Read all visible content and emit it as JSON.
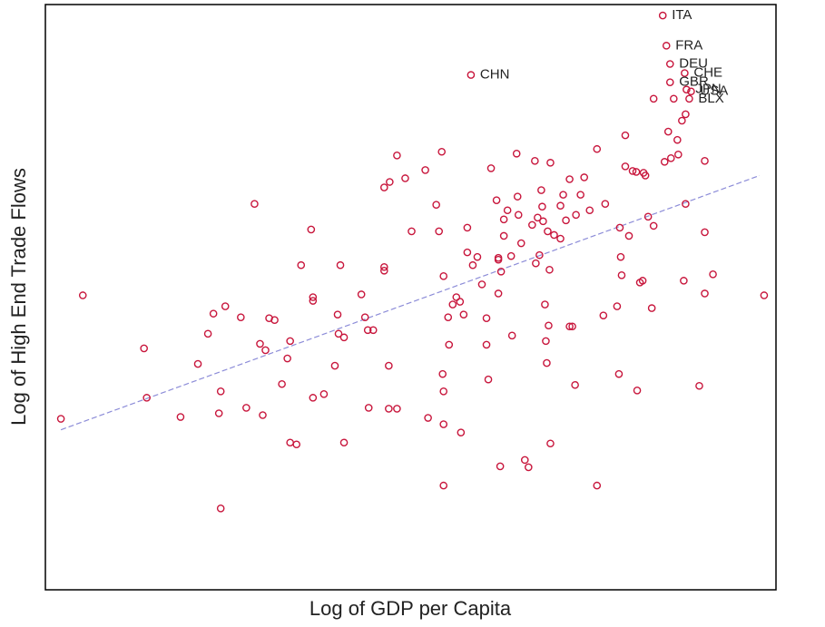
{
  "chart_data": {
    "type": "scatter",
    "x_label": "Log of GDP per Capita",
    "y_label": "Log of High End Trade Flows",
    "xlim": [
      0,
      80
    ],
    "ylim": [
      0,
      64
    ],
    "grid": false,
    "series": [
      {
        "color": "#c8163c",
        "x": [
          67.6,
          68,
          68.4,
          70,
          68.4,
          70.2,
          70.7,
          70.5,
          46.6
        ],
        "values": [
          62.8,
          59.5,
          57.5,
          56.5,
          55.5,
          54.7,
          54.5,
          53.7,
          56.3
        ],
        "labels": [
          "ITA",
          "FRA",
          "DEU",
          "CHE",
          "GBR",
          "JPN",
          "USA",
          "BLX",
          "CHN"
        ]
      },
      {
        "color": "#c8163c",
        "x": [
          4.1,
          1.7,
          10.8,
          11.1,
          14.8,
          16.7,
          17.8,
          18.4,
          19.7,
          19.2,
          19,
          19.2,
          21.4,
          22,
          22.9,
          23.5,
          23.8,
          24.1,
          24.5,
          25.1,
          25.9,
          26.5,
          26.8,
          26.8,
          27.5,
          28,
          29.1,
          29.3,
          29.3,
          29.3,
          30.5,
          31.7,
          32,
          32.1,
          32.7,
          32.3,
          32.7,
          34.6,
          35,
          35.3,
          35.9,
          35.4,
          37.1,
          37.1,
          37.1,
          37.7,
          37.6,
          37.6,
          38.5,
          38.5,
          39.4,
          40.1,
          41.6,
          41.9,
          42.8,
          43.1,
          43.4,
          43.6,
          43.5,
          43.6,
          43.6,
          43.6,
          44.1,
          44.2,
          44.6,
          45,
          45.4,
          45.8,
          45.5,
          46.2,
          46.2,
          46.8,
          47.3,
          47.8,
          48.3,
          48.3,
          48.5,
          48.8,
          49.4,
          49.6,
          49.6,
          49.6,
          49.8,
          49.9,
          50.2,
          50.2,
          50.6,
          51.1,
          51,
          51.6,
          51.7,
          51.8,
          52.1,
          52.5,
          52.9,
          53.3,
          53.6,
          53.7,
          53.9,
          54.1,
          54.3,
          54.4,
          54.5,
          54.7,
          54.8,
          54.9,
          55.1,
          55,
          55.3,
          55.2,
          55.3,
          55.7,
          56.4,
          56.4,
          56.7,
          57,
          57.4,
          57.4,
          57.7,
          58,
          58.1,
          58.6,
          59,
          59.6,
          60.4,
          60.4,
          61.3,
          61.1,
          62.6,
          62.8,
          62.9,
          63,
          63.1,
          63.5,
          63.5,
          63.9,
          64.3,
          64.7,
          64.8,
          65.1,
          65.4,
          65.5,
          65.7,
          66,
          66.4,
          66.6,
          66.6,
          67.8,
          68.2,
          68.5,
          68.8,
          69.2,
          69.3,
          69.7,
          70.1,
          69.9,
          70.1,
          71.6,
          72.2,
          72.2,
          72.2,
          73.1,
          78.7
        ],
        "values": [
          32.2,
          18.7,
          26.4,
          21,
          18.9,
          24.7,
          28,
          30.2,
          31,
          21.7,
          19.3,
          8.9,
          29.8,
          19.9,
          42.2,
          26.9,
          19.1,
          26.2,
          29.7,
          29.5,
          22.5,
          25.3,
          27.2,
          16.1,
          15.9,
          35.5,
          39.4,
          32,
          31.6,
          21,
          21.4,
          24.5,
          30.1,
          28,
          27.6,
          35.5,
          16.1,
          32.3,
          29.8,
          28.4,
          28.4,
          19.9,
          35.3,
          34.9,
          44,
          44.6,
          24.5,
          19.8,
          19.8,
          47.5,
          45,
          39.2,
          45.9,
          18.8,
          42.1,
          39.2,
          47.9,
          34.3,
          23.6,
          21.7,
          18.1,
          11.4,
          29.8,
          26.8,
          31.2,
          32,
          31.5,
          30.1,
          17.2,
          39.6,
          36.9,
          35.5,
          36.4,
          33.4,
          29.7,
          26.8,
          23,
          46.1,
          42.6,
          36.3,
          36.1,
          32.4,
          13.5,
          34.8,
          38.7,
          40.5,
          41.5,
          27.8,
          36.5,
          47.7,
          43,
          41,
          37.9,
          14.2,
          13.4,
          39.9,
          46.9,
          35.7,
          40.7,
          36.6,
          43.7,
          41.9,
          40.3,
          31.2,
          27.2,
          24.8,
          28.9,
          39.2,
          46.7,
          35,
          16,
          38.8,
          38.4,
          42,
          43.2,
          40.4,
          44.9,
          28.8,
          28.8,
          22.4,
          41,
          43.2,
          45.1,
          41.5,
          48.2,
          11.4,
          42.2,
          30,
          31,
          23.6,
          39.6,
          36.4,
          34.4,
          49.7,
          46.3,
          38.7,
          45.8,
          45.7,
          21.8,
          33.6,
          33.8,
          45.6,
          45.3,
          40.8,
          30.8,
          39.8,
          53.7,
          46.8,
          50.1,
          47.2,
          53.7,
          49.2,
          47.6,
          51.3,
          52,
          33.8,
          42.2,
          22.3,
          46.9,
          39.1,
          32.4,
          34.5,
          32.2
        ]
      }
    ],
    "trend": {
      "color": "#8c8cd8",
      "x": [
        1.7,
        78.2
      ],
      "values": [
        17.5,
        45.3
      ]
    }
  }
}
